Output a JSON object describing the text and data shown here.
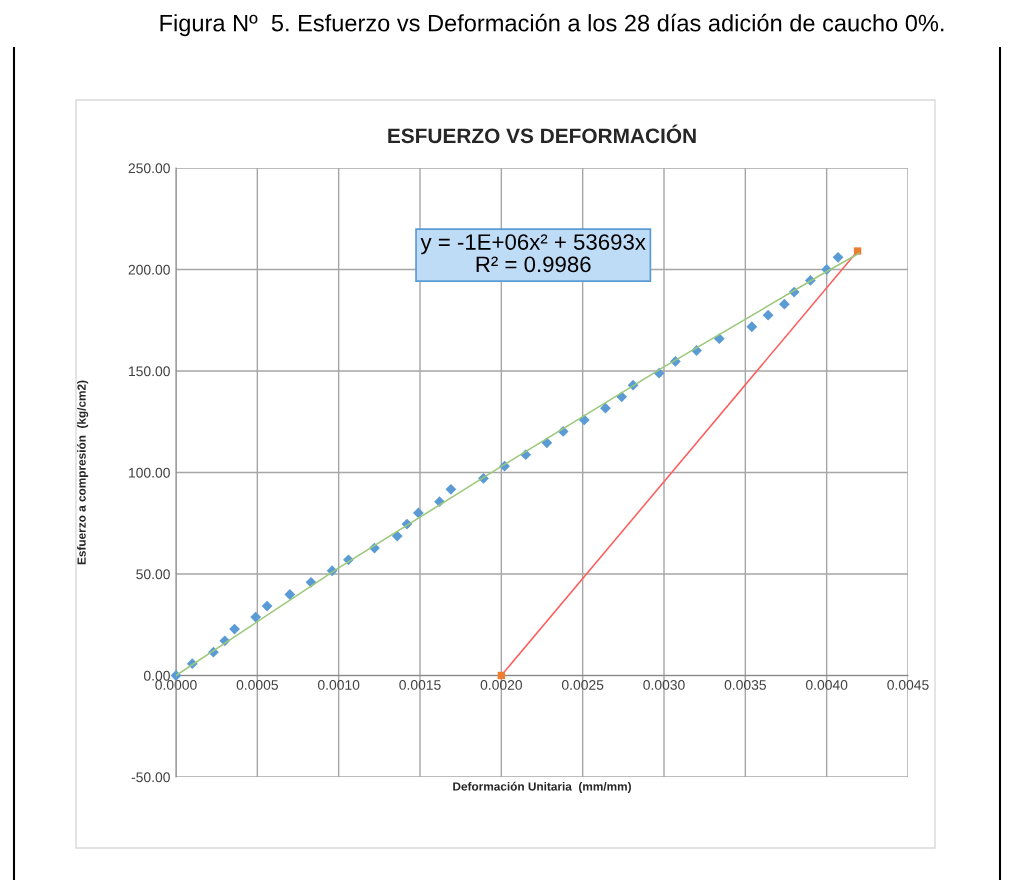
{
  "chart_data": {
    "type": "scatter",
    "title": "ESFUERZO VS DEFORMACIÓN",
    "xlabel": "Deformación Unitaria  (mm/mm)",
    "ylabel": "Esfuerzo a compresión  (kg/cm2)",
    "annotations": [
      "Figura Nº  5. Esfuerzo vs Deformación a los 28 días adición de caucho 0%.",
      "y = -1E+06x² + 53693x\nR² = 0.9986"
    ],
    "series": [
      {
        "type": "line",
        "color": "#ff5b5b",
        "marker": "none",
        "line_style": "solid",
        "x": [
          0.002,
          0.00419
        ],
        "values": [
          0,
          209.1
        ]
      },
      {
        "color": "#ed7d31",
        "marker": "square",
        "x": [
          0.002,
          0.00419
        ],
        "values": [
          0,
          209.1
        ]
      },
      {
        "color": "#5b9bd5",
        "marker": "diamond",
        "x": [
          0,
          0.0001,
          0.00023,
          0.0003,
          0.00036,
          0.00049,
          0.00056,
          0.0007,
          0.00083,
          0.00096,
          0.00106,
          0.00122,
          0.00136,
          0.00142,
          0.00149,
          0.00162,
          0.00169,
          0.00189,
          0.00202,
          0.00215,
          0.00228,
          0.00238,
          0.00251,
          0.00264,
          0.00274,
          0.00281,
          0.00297,
          0.00307,
          0.0032,
          0.00334,
          0.00354,
          0.00364,
          0.00374,
          0.0038,
          0.0039,
          0.004,
          0.00407
        ],
        "values": [
          0,
          5.8,
          11.5,
          17.1,
          22.9,
          28.8,
          34.2,
          39.9,
          45.9,
          51.6,
          57.0,
          62.8,
          68.7,
          74.6,
          80.1,
          85.6,
          91.7,
          97.1,
          103.1,
          108.8,
          114.6,
          120.2,
          125.9,
          131.7,
          137.3,
          143.0,
          148.9,
          154.7,
          160.1,
          165.9,
          171.8,
          177.5,
          182.9,
          188.9,
          194.6,
          200.0,
          206.0
        ]
      },
      {
        "type": "line",
        "color": "#9bc87a",
        "marker": "none",
        "line_style": "solid",
        "x": [
          0,
          0.001,
          0.002,
          0.003,
          0.004,
          0.0042
        ],
        "values": [
          0,
          53,
          103,
          152,
          199,
          208
        ]
      }
    ],
    "xlim": [
      0,
      0.0045
    ],
    "ylim": [
      -50,
      250
    ],
    "xticks": [
      {
        "value": 0,
        "label": "0.0000"
      },
      {
        "value": 0.0005,
        "label": "0.0005"
      },
      {
        "value": 0.001,
        "label": "0.0010"
      },
      {
        "value": 0.0015,
        "label": "0.0015"
      },
      {
        "value": 0.002,
        "label": "0.0020"
      },
      {
        "value": 0.0025,
        "label": "0.0025"
      },
      {
        "value": 0.003,
        "label": "0.0030"
      },
      {
        "value": 0.0035,
        "label": "0.0035"
      },
      {
        "value": 0.004,
        "label": "0.0040"
      },
      {
        "value": 0.0045,
        "label": "0.0045"
      }
    ],
    "yticks": [
      {
        "value": -50,
        "label": "-50.00"
      },
      {
        "value": 0,
        "label": "0.00"
      },
      {
        "value": 50,
        "label": "50.00"
      },
      {
        "value": 100,
        "label": "100.00"
      },
      {
        "value": 150,
        "label": "150.00"
      },
      {
        "value": 200,
        "label": "200.00"
      },
      {
        "value": 250,
        "label": "250.00"
      }
    ],
    "grid": true
  }
}
